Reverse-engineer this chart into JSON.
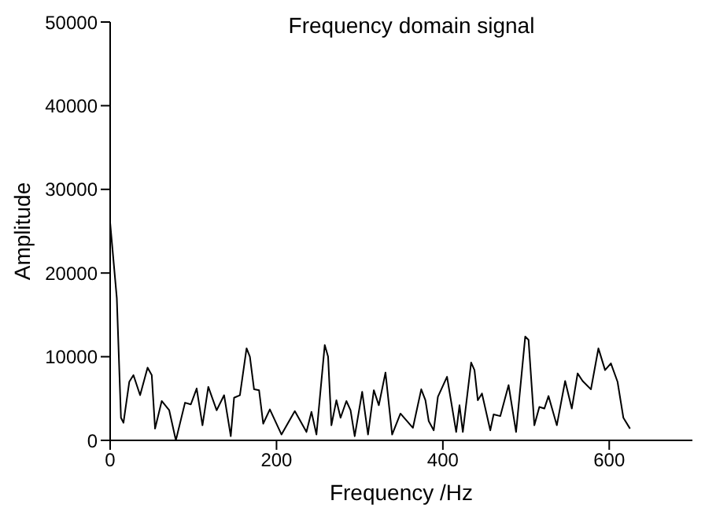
{
  "chart_data": {
    "type": "line",
    "title": "Frequency domain signal",
    "xlabel": "Frequency /Hz",
    "ylabel": "Amplitude",
    "xlim": [
      0,
      700
    ],
    "xticks": [
      0,
      200,
      400,
      600
    ],
    "ylim": [
      0,
      50000
    ],
    "yticks": [
      0,
      10000,
      20000,
      30000,
      40000,
      50000
    ],
    "grid": false,
    "legend": false,
    "marker": "none",
    "line_style": "solid",
    "series": [
      {
        "color": "#000000",
        "x": [
          0,
          8,
          13,
          16,
          23,
          28,
          36,
          45,
          50,
          54,
          62,
          71,
          79,
          90,
          97,
          104,
          111,
          118,
          128,
          137,
          145,
          149,
          156,
          164,
          168,
          173,
          179,
          184,
          192,
          206,
          222,
          236,
          242,
          248,
          258,
          262,
          266,
          272,
          277,
          284,
          289,
          294,
          303,
          310,
          317,
          323,
          331,
          339,
          349,
          364,
          374,
          379,
          383,
          389,
          394,
          405,
          416,
          420,
          424,
          434,
          438,
          442,
          447,
          457,
          461,
          469,
          479,
          488,
          499,
          503,
          510,
          516,
          522,
          527,
          537,
          547,
          555,
          562,
          568,
          578,
          587,
          595,
          602,
          610,
          617,
          625
        ],
        "values": [
          26000,
          17000,
          2700,
          2100,
          7000,
          7800,
          5400,
          8700,
          7800,
          1400,
          4700,
          3600,
          0,
          4500,
          4300,
          6200,
          1800,
          6400,
          3600,
          5400,
          500,
          5100,
          5400,
          11000,
          10000,
          6100,
          6000,
          2000,
          3700,
          700,
          3500,
          1000,
          3400,
          700,
          11400,
          10000,
          1800,
          4800,
          2700,
          4700,
          3600,
          500,
          5800,
          700,
          6000,
          4200,
          8100,
          700,
          3200,
          1500,
          6100,
          4800,
          2300,
          1200,
          5200,
          7600,
          1000,
          4200,
          1000,
          9300,
          8400,
          4800,
          5600,
          1200,
          3100,
          2900,
          6600,
          1000,
          12400,
          12000,
          1800,
          4000,
          3800,
          5300,
          1800,
          7100,
          3800,
          8000,
          7100,
          6100,
          11000,
          8400,
          9200,
          7000,
          2700,
          1400
        ]
      }
    ]
  }
}
